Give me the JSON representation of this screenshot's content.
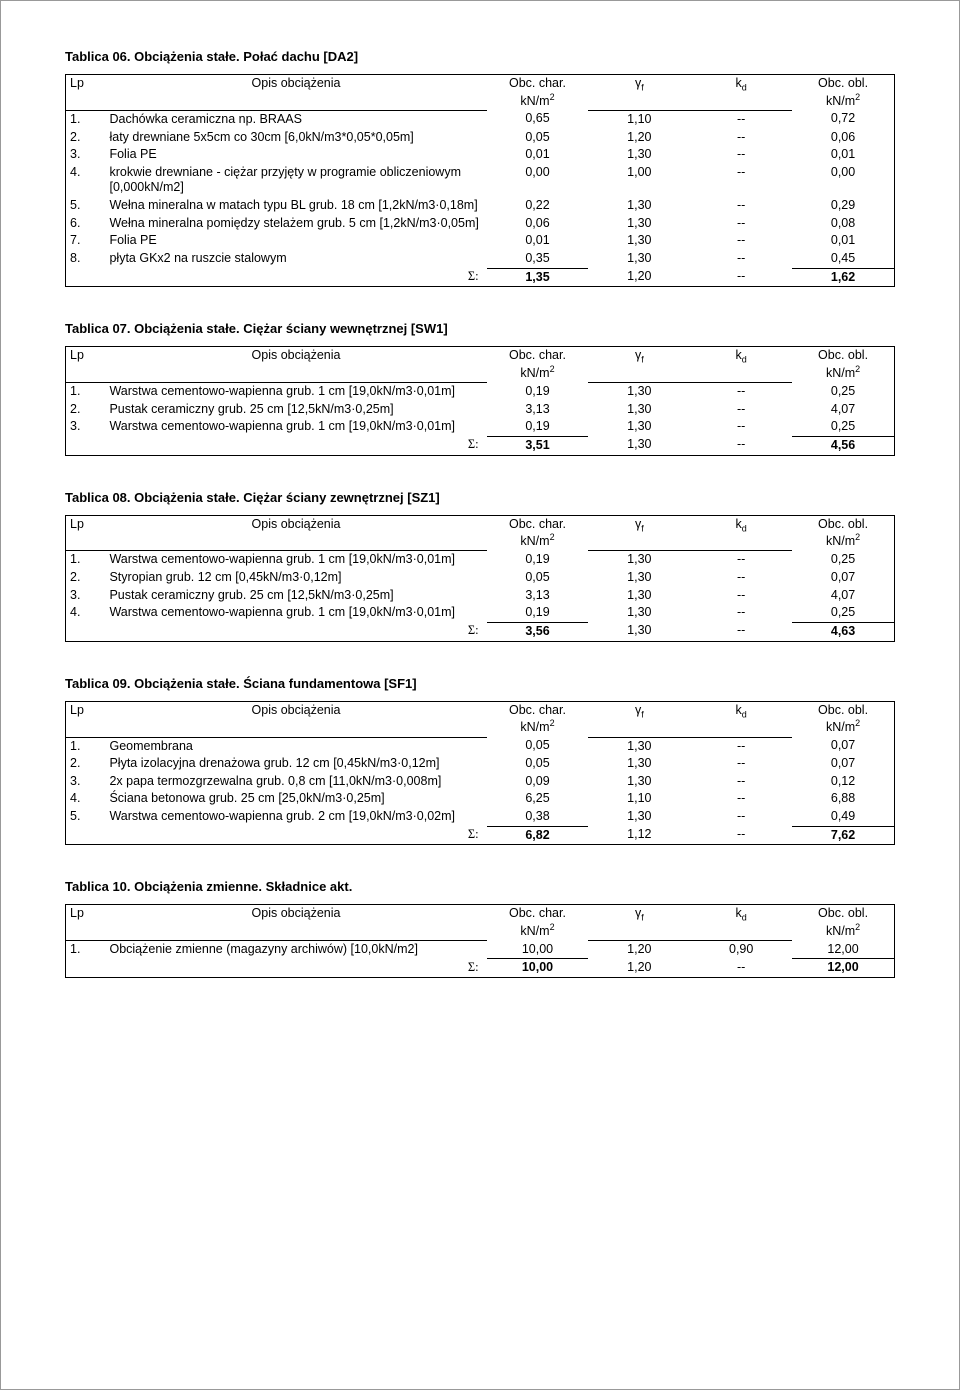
{
  "headers": {
    "lp": "Lp",
    "desc": "Opis obciążenia",
    "obc_char": "Obc. char.",
    "obc_char_unit": "kN/m",
    "gamma": "γ",
    "gamma_sub": "f",
    "kd": "k",
    "kd_sub": "d",
    "obc_obl": "Obc. obl.",
    "obc_obl_unit": "kN/m",
    "sigma": "Σ:"
  },
  "tables": [
    {
      "title": "Tablica 06. Obciążenia stałe. Połać dachu [DA2]",
      "rows": [
        {
          "lp": "1.",
          "desc": "Dachówka ceramiczna np. BRAAS",
          "char": "0,65",
          "gamma": "1,10",
          "kd": "--",
          "obl": "0,72"
        },
        {
          "lp": "2.",
          "desc": "łaty drewniane 5x5cm co 30cm [6,0kN/m3*0,05*0,05m]",
          "char": "0,05",
          "gamma": "1,20",
          "kd": "--",
          "obl": "0,06"
        },
        {
          "lp": "3.",
          "desc": "Folia PE",
          "char": "0,01",
          "gamma": "1,30",
          "kd": "--",
          "obl": "0,01"
        },
        {
          "lp": "4.",
          "desc": "krokwie drewniane - ciężar przyjęty w programie obliczeniowym   [0,000kN/m2]",
          "char": "0,00",
          "gamma": "1,00",
          "kd": "--",
          "obl": "0,00"
        },
        {
          "lp": "5.",
          "desc": "Wełna mineralna w matach typu BL grub. 18 cm [1,2kN/m3·0,18m]",
          "char": "0,22",
          "gamma": "1,30",
          "kd": "--",
          "obl": "0,29"
        },
        {
          "lp": "6.",
          "desc": "Wełna mineralna pomiędzy stelażem grub. 5 cm [1,2kN/m3·0,05m]",
          "char": "0,06",
          "gamma": "1,30",
          "kd": "--",
          "obl": "0,08"
        },
        {
          "lp": "7.",
          "desc": "Folia PE",
          "char": "0,01",
          "gamma": "1,30",
          "kd": "--",
          "obl": "0,01"
        },
        {
          "lp": "8.",
          "desc": "płyta GKx2 na ruszcie stalowym",
          "char": "0,35",
          "gamma": "1,30",
          "kd": "--",
          "obl": "0,45"
        }
      ],
      "sum": {
        "char": "1,35",
        "gamma": "1,20",
        "kd": "--",
        "obl": "1,62"
      }
    },
    {
      "title": "Tablica 07. Obciążenia stałe. Ciężar ściany wewnętrznej [SW1]",
      "rows": [
        {
          "lp": "1.",
          "desc": "Warstwa cementowo-wapienna grub. 1 cm [19,0kN/m3·0,01m]",
          "char": "0,19",
          "gamma": "1,30",
          "kd": "--",
          "obl": "0,25"
        },
        {
          "lp": "2.",
          "desc": "Pustak ceramiczny grub. 25 cm  [12,5kN/m3·0,25m]",
          "char": "3,13",
          "gamma": "1,30",
          "kd": "--",
          "obl": "4,07"
        },
        {
          "lp": "3.",
          "desc": "Warstwa cementowo-wapienna grub. 1 cm [19,0kN/m3·0,01m]",
          "char": "0,19",
          "gamma": "1,30",
          "kd": "--",
          "obl": "0,25"
        }
      ],
      "sum": {
        "char": "3,51",
        "gamma": "1,30",
        "kd": "--",
        "obl": "4,56"
      }
    },
    {
      "title": "Tablica 08. Obciążenia stałe. Ciężar ściany zewnętrznej [SZ1]",
      "rows": [
        {
          "lp": "1.",
          "desc": "Warstwa cementowo-wapienna grub. 1 cm [19,0kN/m3·0,01m]",
          "char": "0,19",
          "gamma": "1,30",
          "kd": "--",
          "obl": "0,25"
        },
        {
          "lp": "2.",
          "desc": "Styropian grub. 12 cm  [0,45kN/m3·0,12m]",
          "char": "0,05",
          "gamma": "1,30",
          "kd": "--",
          "obl": "0,07"
        },
        {
          "lp": "3.",
          "desc": "Pustak ceramiczny grub. 25 cm  [12,5kN/m3·0,25m]",
          "char": "3,13",
          "gamma": "1,30",
          "kd": "--",
          "obl": "4,07"
        },
        {
          "lp": "4.",
          "desc": "Warstwa cementowo-wapienna grub. 1 cm [19,0kN/m3·0,01m]",
          "char": "0,19",
          "gamma": "1,30",
          "kd": "--",
          "obl": "0,25"
        }
      ],
      "sum": {
        "char": "3,56",
        "gamma": "1,30",
        "kd": "--",
        "obl": "4,63"
      }
    },
    {
      "title": "Tablica 09. Obciążenia stałe. Ściana fundamentowa [SF1]",
      "rows": [
        {
          "lp": "1.",
          "desc": "Geomembrana",
          "char": "0,05",
          "gamma": "1,30",
          "kd": "--",
          "obl": "0,07"
        },
        {
          "lp": "2.",
          "desc": "Płyta izolacyjna drenażowa grub. 12 cm [0,45kN/m3·0,12m]",
          "char": "0,05",
          "gamma": "1,30",
          "kd": "--",
          "obl": "0,07"
        },
        {
          "lp": "3.",
          "desc": "2x papa termozgrzewalna grub. 0,8 cm [11,0kN/m3·0,008m]",
          "char": "0,09",
          "gamma": "1,30",
          "kd": "--",
          "obl": "0,12"
        },
        {
          "lp": "4.",
          "desc": "Ściana betonowa grub. 25 cm  [25,0kN/m3·0,25m]",
          "char": "6,25",
          "gamma": "1,10",
          "kd": "--",
          "obl": "6,88"
        },
        {
          "lp": "5.",
          "desc": "Warstwa cementowo-wapienna grub. 2 cm [19,0kN/m3·0,02m]",
          "char": "0,38",
          "gamma": "1,30",
          "kd": "--",
          "obl": "0,49"
        }
      ],
      "sum": {
        "char": "6,82",
        "gamma": "1,12",
        "kd": "--",
        "obl": "7,62"
      }
    },
    {
      "title": "Tablica 10. Obciążenia zmienne. Składnice akt.",
      "rows": [
        {
          "lp": "1.",
          "desc": "Obciążenie zmienne (magazyny archiwów) [10,0kN/m2]",
          "char": "10,00",
          "gamma": "1,20",
          "kd": "0,90",
          "obl": "12,00"
        }
      ],
      "sum": {
        "char": "10,00",
        "gamma": "1,20",
        "kd": "--",
        "obl": "12,00"
      }
    }
  ]
}
